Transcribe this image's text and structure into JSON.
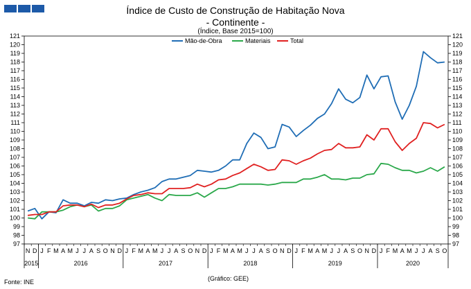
{
  "logo": {
    "icon": "institution-logo-icon",
    "color": "#1d5aa8"
  },
  "header": {
    "title": "Índice de Custo de Construção de Habitação Nova",
    "subtitle": "- Continente -",
    "subsubtitle": "(Índice, Base 2015=100)"
  },
  "footer": {
    "source": "Fonte: INE",
    "credit": "(Gráfico: GEE)"
  },
  "chart_data": {
    "type": "line",
    "title": "Índice de Custo de Construção de Habitação Nova",
    "subtitle": "- Continente -",
    "ylabel": "(Índice, Base 2015=100)",
    "xlabel": "",
    "ylim": [
      97,
      121
    ],
    "yticks": [
      97,
      98,
      99,
      100,
      101,
      102,
      103,
      104,
      105,
      106,
      107,
      108,
      109,
      110,
      111,
      112,
      113,
      114,
      115,
      116,
      117,
      118,
      119,
      120,
      121
    ],
    "grid": false,
    "legend_position": "top-center",
    "month_labels": [
      "N",
      "D",
      "J",
      "F",
      "M",
      "A",
      "M",
      "J",
      "J",
      "A",
      "S",
      "O",
      "N",
      "D",
      "J",
      "F",
      "M",
      "A",
      "M",
      "J",
      "J",
      "A",
      "S",
      "O",
      "N",
      "D",
      "J",
      "F",
      "M",
      "A",
      "M",
      "J",
      "J",
      "A",
      "S",
      "O",
      "N",
      "D",
      "J",
      "F",
      "M",
      "A",
      "M",
      "J",
      "J",
      "A",
      "S",
      "O",
      "N",
      "D",
      "J",
      "F",
      "M",
      "A",
      "M",
      "J",
      "J",
      "A",
      "S",
      "O"
    ],
    "years": [
      {
        "label": "2015",
        "start": 0,
        "end": 1
      },
      {
        "label": "2016",
        "start": 2,
        "end": 13
      },
      {
        "label": "2017",
        "start": 14,
        "end": 25
      },
      {
        "label": "2018",
        "start": 26,
        "end": 37
      },
      {
        "label": "2019",
        "start": 38,
        "end": 49
      },
      {
        "label": "2020",
        "start": 50,
        "end": 59
      }
    ],
    "series": [
      {
        "name": "Mão-de-Obra",
        "color": "#1f6db5",
        "values": [
          100.8,
          101.1,
          99.9,
          100.7,
          100.6,
          102.1,
          101.7,
          101.7,
          101.4,
          101.8,
          101.7,
          102.1,
          102.0,
          102.2,
          102.3,
          102.7,
          103.0,
          103.2,
          103.5,
          104.2,
          104.5,
          104.5,
          104.7,
          104.9,
          105.5,
          105.4,
          105.3,
          105.5,
          106.0,
          106.7,
          106.7,
          108.6,
          109.8,
          109.3,
          108.0,
          108.2,
          110.8,
          110.5,
          109.4,
          110.1,
          110.7,
          111.5,
          112.0,
          113.2,
          114.9,
          113.7,
          113.3,
          113.9,
          116.5,
          114.9,
          116.3,
          116.4,
          113.4,
          111.4,
          113.0,
          115.2,
          119.2,
          118.5,
          117.9,
          118.0
        ]
      },
      {
        "name": "Materiais",
        "color": "#2aa84a",
        "values": [
          100.0,
          99.9,
          100.7,
          100.7,
          100.7,
          100.9,
          101.3,
          101.5,
          101.3,
          101.5,
          100.8,
          101.1,
          101.1,
          101.4,
          102.1,
          102.3,
          102.5,
          102.7,
          102.3,
          102.0,
          102.7,
          102.6,
          102.6,
          102.6,
          102.9,
          102.4,
          102.9,
          103.4,
          103.4,
          103.6,
          103.9,
          103.9,
          103.9,
          103.9,
          103.8,
          103.9,
          104.1,
          104.1,
          104.1,
          104.5,
          104.5,
          104.7,
          105.0,
          104.5,
          104.5,
          104.4,
          104.6,
          104.6,
          105.0,
          105.1,
          106.3,
          106.2,
          105.8,
          105.5,
          105.5,
          105.2,
          105.4,
          105.8,
          105.4,
          105.9
        ]
      },
      {
        "name": "Total",
        "color": "#e02020",
        "values": [
          100.3,
          100.4,
          100.4,
          100.7,
          100.7,
          101.4,
          101.5,
          101.5,
          101.3,
          101.6,
          101.2,
          101.5,
          101.5,
          101.7,
          102.2,
          102.6,
          102.7,
          102.9,
          102.8,
          102.8,
          103.4,
          103.4,
          103.4,
          103.5,
          103.9,
          103.6,
          103.9,
          104.4,
          104.5,
          104.9,
          105.2,
          105.7,
          106.2,
          105.9,
          105.5,
          105.6,
          106.7,
          106.6,
          106.2,
          106.6,
          106.9,
          107.4,
          107.8,
          107.9,
          108.6,
          108.1,
          108.1,
          108.2,
          109.6,
          109.0,
          110.3,
          110.3,
          108.8,
          107.8,
          108.6,
          109.2,
          111.0,
          110.9,
          110.4,
          110.8
        ]
      }
    ]
  }
}
